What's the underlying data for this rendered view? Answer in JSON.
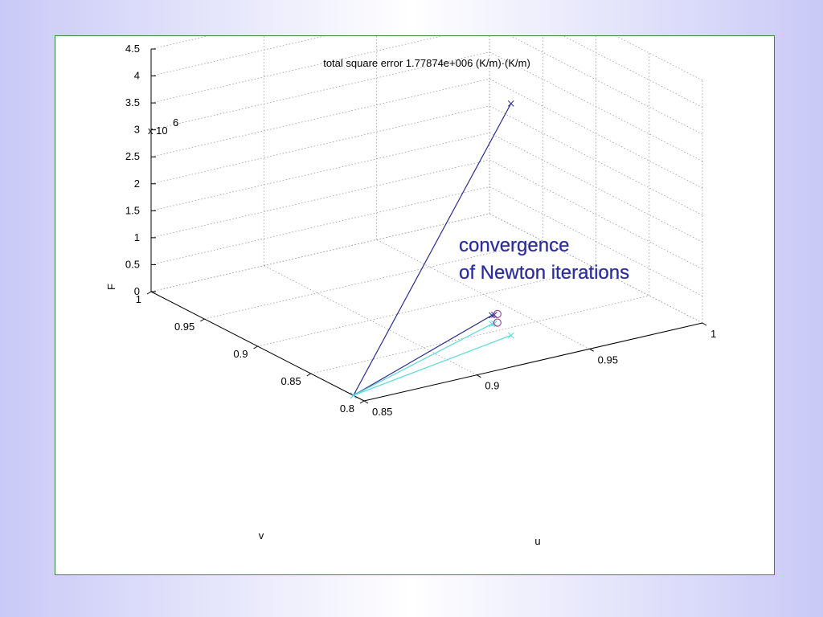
{
  "page": {
    "background_colors": [
      "#c9c9f7",
      "#ffffff"
    ],
    "frame_color": "#3a8a3a"
  },
  "chart_data": {
    "type": "line3d",
    "title": "total square error 1.77874e+006 (K/m)·(K/m)",
    "xlabel": "u",
    "ylabel": "v",
    "zlabel": "F",
    "z_exponent_label": "x 10",
    "z_exponent_power": "6",
    "xlim": [
      0.85,
      1.0
    ],
    "ylim": [
      0.8,
      1.0
    ],
    "zlim": [
      0,
      4.5
    ],
    "x_ticks": [
      "0.85",
      "0.9",
      "0.95",
      "1"
    ],
    "y_ticks": [
      "0.8",
      "0.85",
      "0.9",
      "0.95",
      "1"
    ],
    "z_ticks": [
      "0",
      "0.5",
      "1",
      "1.5",
      "2",
      "2.5",
      "3",
      "3.5",
      "4",
      "4.5"
    ],
    "grid": true,
    "annotation": [
      "convergence",
      "of Newton iterations"
    ],
    "annotation_color": "#2b2b9e",
    "series": [
      {
        "color": "#2e2e8c",
        "marker": "x",
        "final_marker": "circle",
        "points": [
          {
            "u": 0.934,
            "v": 0.84,
            "F": 4.3
          },
          {
            "u": 0.85,
            "v": 0.81,
            "F": 0.0
          },
          {
            "u": 0.935,
            "v": 0.86,
            "F": 0.16
          },
          {
            "u": 0.936,
            "v": 0.86,
            "F": 0.16
          }
        ]
      },
      {
        "color": "#5fd9d9",
        "marker": "x",
        "final_marker": "circle",
        "points": [
          {
            "u": 0.934,
            "v": 0.84,
            "F": 0.0
          },
          {
            "u": 0.85,
            "v": 0.81,
            "F": 0.0
          },
          {
            "u": 0.935,
            "v": 0.86,
            "F": 0.0
          },
          {
            "u": 0.936,
            "v": 0.86,
            "F": 0.0
          }
        ]
      }
    ]
  }
}
